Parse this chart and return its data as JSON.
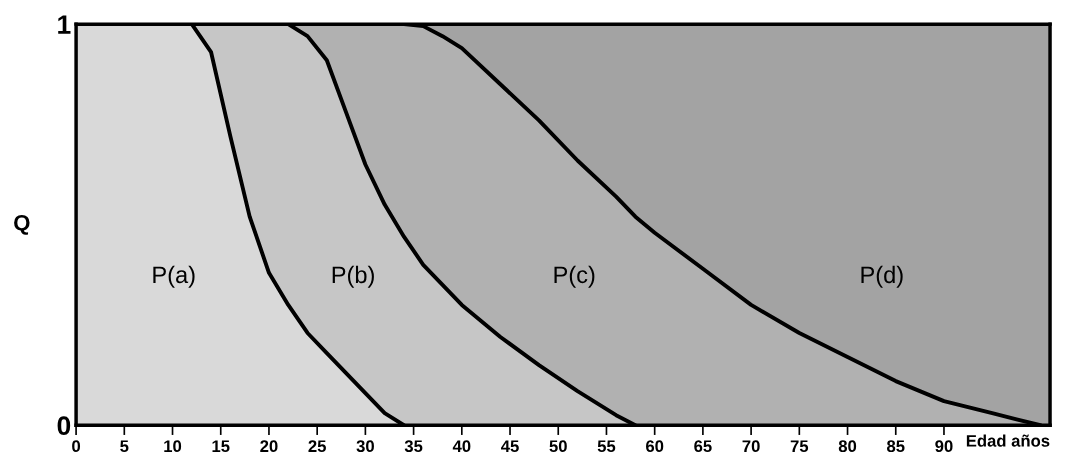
{
  "chart_data": {
    "type": "area",
    "stacked": true,
    "xlabel": "Edad años",
    "ylabel": "Q",
    "x": [
      0,
      10,
      12,
      14,
      16,
      18,
      20,
      22,
      24,
      26,
      28,
      30,
      32,
      34,
      36,
      38,
      40,
      44,
      48,
      52,
      56,
      58,
      60,
      65,
      70,
      75,
      80,
      85,
      90,
      95,
      100,
      101
    ],
    "series": [
      {
        "name": "P(a)",
        "color": "#d9d9d9",
        "values": [
          1,
          1,
          1,
          0.93,
          0.72,
          0.52,
          0.38,
          0.3,
          0.23,
          0.18,
          0.13,
          0.08,
          0.03,
          0,
          null,
          null,
          null,
          null,
          null,
          null,
          null,
          null,
          null,
          null,
          null,
          null,
          null,
          null,
          null,
          null,
          null,
          null
        ]
      },
      {
        "name": "P(b)",
        "color": "#c6c6c6",
        "values": [
          null,
          null,
          0,
          0.07,
          0.28,
          0.48,
          0.62,
          0.7,
          0.74,
          0.73,
          0.65,
          0.57,
          0.52,
          0.47,
          0.4,
          0.35,
          0.3,
          0.22,
          0.15,
          0.085,
          0.025,
          0,
          null,
          null,
          null,
          null,
          null,
          null,
          null,
          null,
          null,
          null
        ]
      },
      {
        "name": "P(c)",
        "color": "#b1b1b1",
        "values": [
          null,
          null,
          null,
          null,
          null,
          null,
          null,
          0,
          0.03,
          0.09,
          0.22,
          0.35,
          0.45,
          0.53,
          0.595,
          0.62,
          0.64,
          0.63,
          0.61,
          0.575,
          0.545,
          0.52,
          0.48,
          0.39,
          0.3,
          0.23,
          0.17,
          0.11,
          0.06,
          0.03,
          0,
          null
        ]
      },
      {
        "name": "P(d)",
        "color": "#a3a3a3",
        "values": [
          null,
          null,
          null,
          null,
          null,
          null,
          null,
          null,
          null,
          null,
          null,
          null,
          null,
          0,
          0.005,
          0.03,
          0.06,
          0.15,
          0.24,
          0.34,
          0.43,
          0.48,
          0.52,
          0.61,
          0.7,
          0.77,
          0.83,
          0.89,
          0.94,
          0.97,
          1,
          1
        ]
      }
    ],
    "xlim": [
      0,
      101
    ],
    "ylim": [
      0,
      1
    ],
    "xticks": [
      0,
      5,
      10,
      15,
      20,
      25,
      30,
      35,
      40,
      45,
      50,
      55,
      60,
      65,
      70,
      75,
      80,
      85,
      90
    ],
    "yticks": [
      0,
      1
    ],
    "grid": false,
    "legend": false
  }
}
